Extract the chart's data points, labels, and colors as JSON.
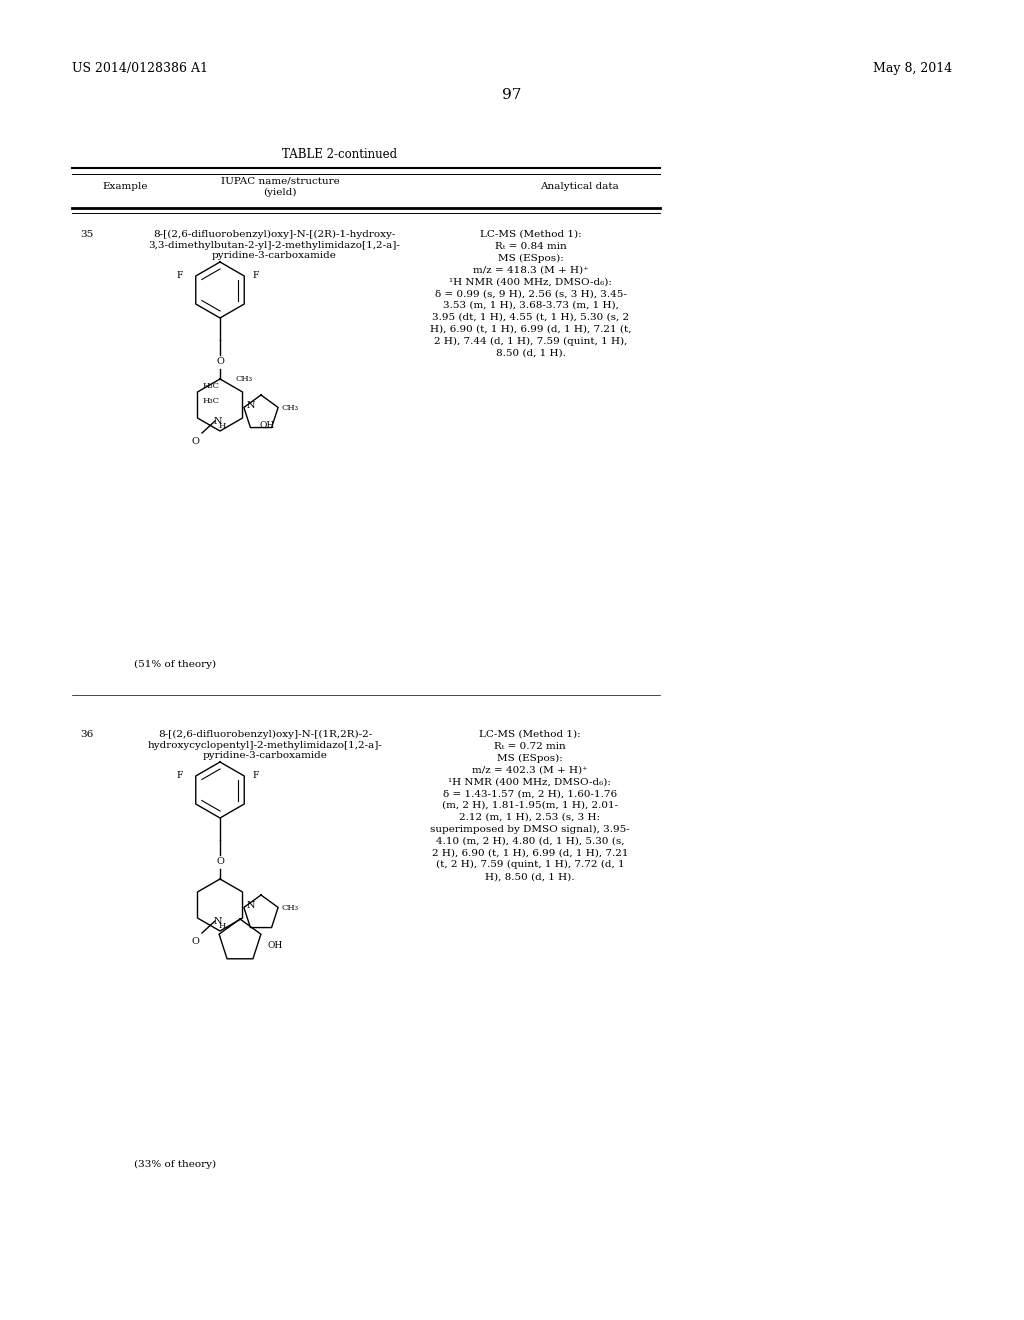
{
  "background_color": "#ffffff",
  "page_number": "97",
  "header_left": "US 2014/0128386 A1",
  "header_right": "May 8, 2014",
  "table_title": "TABLE 2-continued",
  "col1_header": "Example",
  "col2_header_top": "IUPAC name/structure",
  "col2_header_bottom": "(yield)",
  "col3_header": "Analytical data",
  "entry35_num": "35",
  "entry35_name": "8-[(2,6-difluorobenzyl)oxy]-N-[(2R)-1-hydroxy-\n3,3-dimethylbutan-2-yl]-2-methylimidazo[1,2-a]-\npyridine-3-carboxamide",
  "entry35_yield": "(51% of theory)",
  "entry35_data": "LC-MS (Method 1):\nRₜ = 0.84 min\nMS (ESpos):\nm/z = 418.3 (M + H)⁺\n¹H NMR (400 MHz, DMSO-d₆):\nδ = 0.99 (s, 9 H), 2.56 (s, 3 H), 3.45-\n3.53 (m, 1 H), 3.68-3.73 (m, 1 H),\n3.95 (dt, 1 H), 4.55 (t, 1 H), 5.30 (s, 2\nH), 6.90 (t, 1 H), 6.99 (d, 1 H), 7.21 (t,\n2 H), 7.44 (d, 1 H), 7.59 (quint, 1 H),\n8.50 (d, 1 H).",
  "entry36_num": "36",
  "entry36_name": "8-[(2,6-difluorobenzyl)oxy]-N-[(1R,2R)-2-\nhydroxycyclopentyl]-2-methylimidazo[1,2-a]-\npyridine-3-carboxamide",
  "entry36_yield": "(33% of theory)",
  "entry36_data": "LC-MS (Method 1):\nRₜ = 0.72 min\nMS (ESpos):\nm/z = 402.3 (M + H)⁺\n¹H NMR (400 MHz, DMSO-d₆):\nδ = 1.43-1.57 (m, 2 H), 1.60-1.76\n(m, 2 H), 1.81-1.95(m, 1 H), 2.01-\n2.12 (m, 1 H), 2.53 (s, 3 H:\nsuperimposed by DMSO signal), 3.95-\n4.10 (m, 2 H), 4.80 (d, 1 H), 5.30 (s,\n2 H), 6.90 (t, 1 H), 6.99 (d, 1 H), 7.21\n(t, 2 H), 7.59 (quint, 1 H), 7.72 (d, 1\nH), 8.50 (d, 1 H).",
  "font_size_header": 9,
  "font_size_body": 7.5,
  "font_size_page": 11,
  "font_size_table_title": 8.5
}
